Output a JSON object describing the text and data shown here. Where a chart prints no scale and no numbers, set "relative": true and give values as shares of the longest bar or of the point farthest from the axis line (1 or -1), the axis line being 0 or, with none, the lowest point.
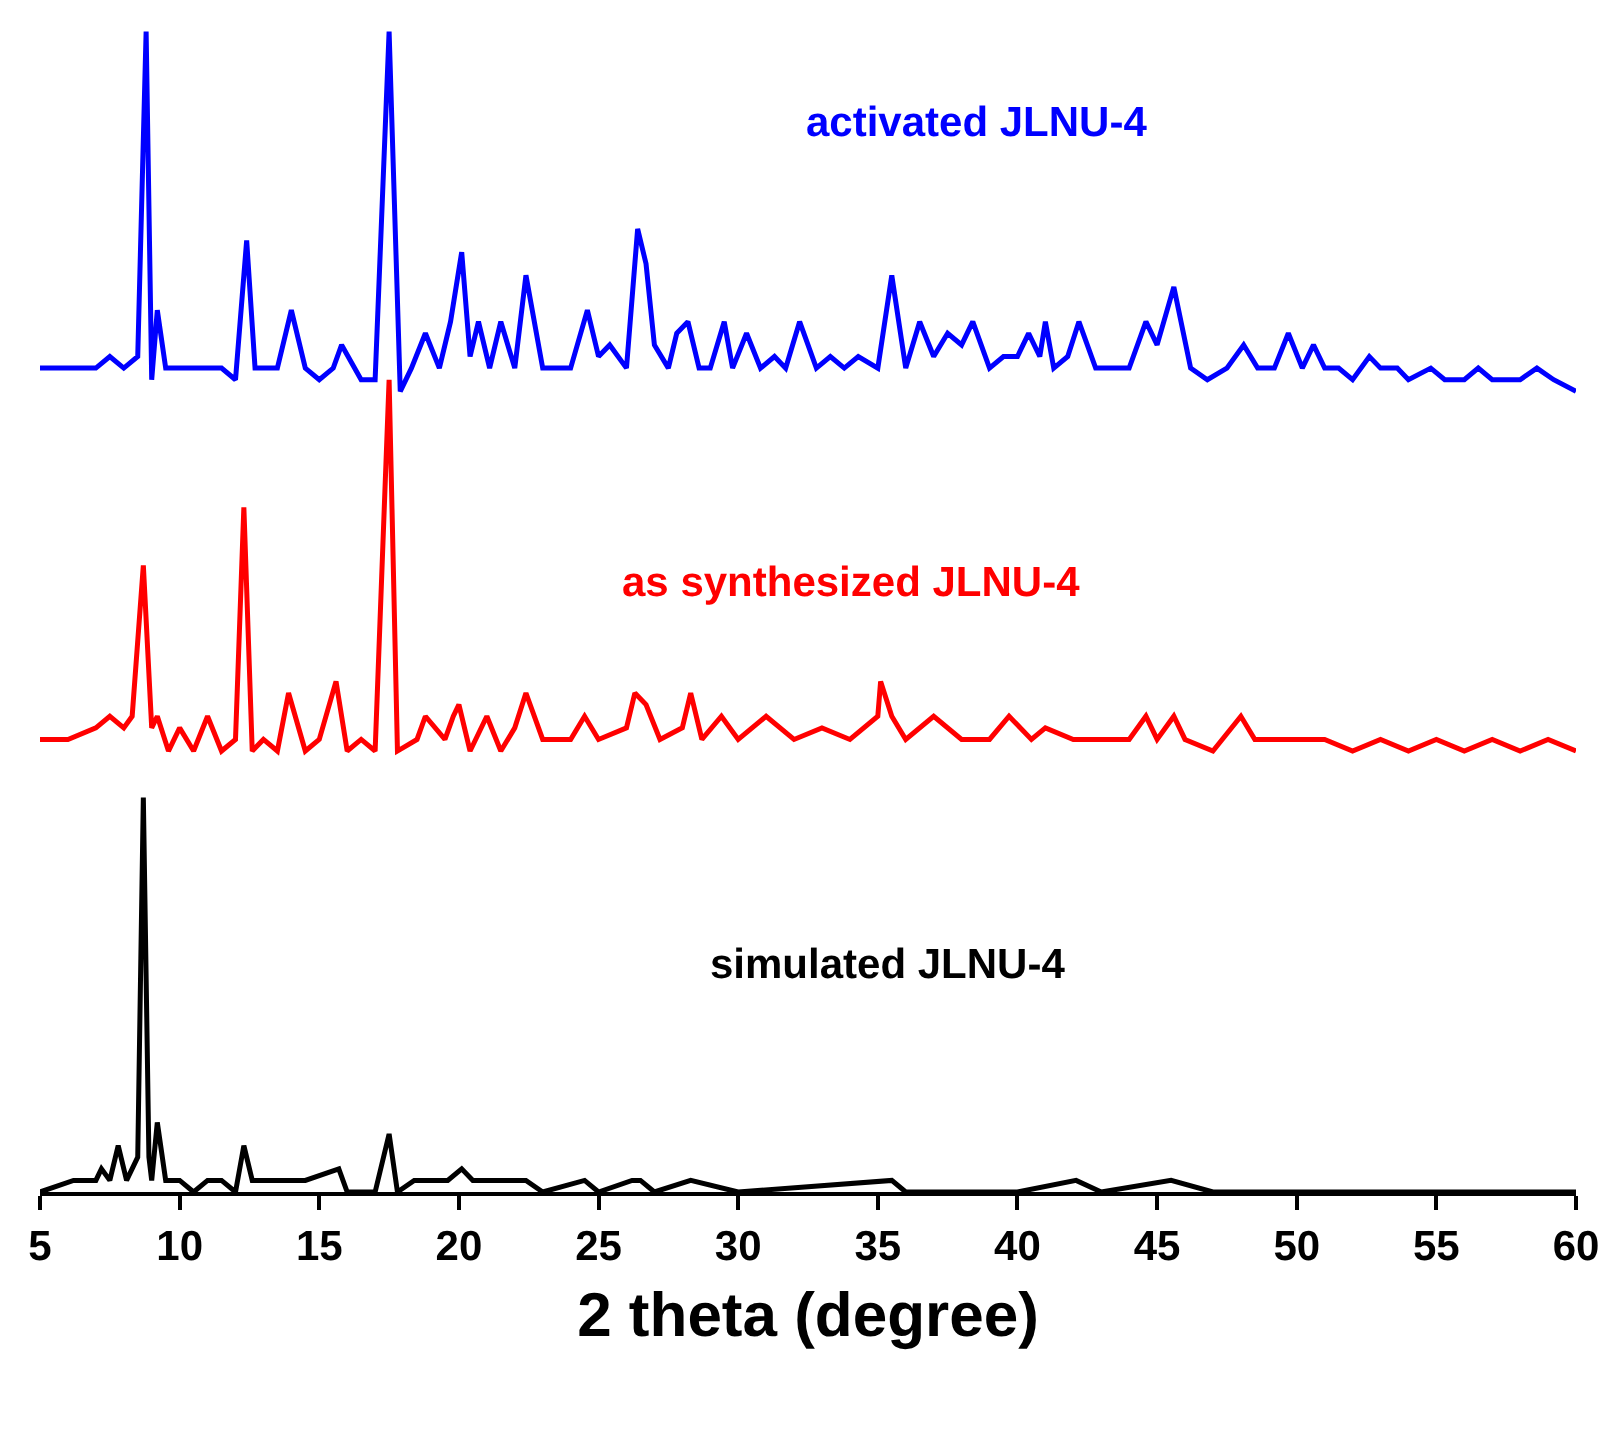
{
  "chart_data": {
    "type": "line",
    "relative": true,
    "xlabel": "2 theta (degree)",
    "xlim": [
      5,
      60
    ],
    "xticks": [
      5,
      10,
      15,
      20,
      25,
      30,
      35,
      40,
      45,
      50,
      55,
      60
    ],
    "grid": false,
    "legend": false,
    "marker": "none",
    "line_style": "solid",
    "tick_labels": "x",
    "series": [
      {
        "name": "activated JLNU-4",
        "color": "#0000ff",
        "x": [
          5,
          6,
          7,
          7.5,
          8,
          8.5,
          8.8,
          9.0,
          9.2,
          9.5,
          10,
          10.5,
          11,
          11.5,
          12,
          12.4,
          12.7,
          13,
          13.5,
          14,
          14.5,
          15,
          15.5,
          15.8,
          16.5,
          17,
          17.5,
          17.9,
          18.3,
          18.8,
          19.3,
          19.7,
          20.1,
          20.4,
          20.7,
          21.1,
          21.5,
          22,
          22.4,
          23,
          23.5,
          24,
          24.6,
          25,
          25.4,
          26,
          26.4,
          26.7,
          27,
          27.5,
          27.8,
          28.2,
          28.6,
          29,
          29.5,
          29.8,
          30.3,
          30.8,
          31.3,
          31.7,
          32.2,
          32.8,
          33.3,
          33.8,
          34.3,
          35,
          35.5,
          36,
          36.5,
          37,
          37.5,
          38,
          38.4,
          39,
          39.5,
          40,
          40.4,
          40.8,
          41,
          41.3,
          41.8,
          42.2,
          42.8,
          43.5,
          44,
          44.6,
          45,
          45.6,
          46.2,
          46.8,
          47.5,
          48.1,
          48.6,
          49.2,
          49.7,
          50.2,
          50.6,
          51,
          51.5,
          52,
          52.6,
          53,
          53.6,
          54,
          54.8,
          55.3,
          56,
          56.5,
          57,
          58,
          58.6,
          59.2,
          60
        ],
        "values": [
          0.71,
          0.71,
          0.71,
          0.72,
          0.71,
          0.72,
          1.0,
          0.7,
          0.76,
          0.71,
          0.71,
          0.71,
          0.71,
          0.71,
          0.7,
          0.82,
          0.71,
          0.71,
          0.71,
          0.76,
          0.71,
          0.7,
          0.71,
          0.73,
          0.7,
          0.7,
          1.0,
          0.69,
          0.71,
          0.74,
          0.71,
          0.75,
          0.81,
          0.72,
          0.75,
          0.71,
          0.75,
          0.71,
          0.79,
          0.71,
          0.71,
          0.71,
          0.76,
          0.72,
          0.73,
          0.71,
          0.83,
          0.8,
          0.73,
          0.71,
          0.74,
          0.75,
          0.71,
          0.71,
          0.75,
          0.71,
          0.74,
          0.71,
          0.72,
          0.71,
          0.75,
          0.71,
          0.72,
          0.71,
          0.72,
          0.71,
          0.79,
          0.71,
          0.75,
          0.72,
          0.74,
          0.73,
          0.75,
          0.71,
          0.72,
          0.72,
          0.74,
          0.72,
          0.75,
          0.71,
          0.72,
          0.75,
          0.71,
          0.71,
          0.71,
          0.75,
          0.73,
          0.78,
          0.71,
          0.7,
          0.71,
          0.73,
          0.71,
          0.71,
          0.74,
          0.71,
          0.73,
          0.71,
          0.71,
          0.7,
          0.72,
          0.71,
          0.71,
          0.7,
          0.71,
          0.7,
          0.7,
          0.71,
          0.7,
          0.7,
          0.71,
          0.7,
          0.69
        ]
      },
      {
        "name": "as synthesized JLNU-4",
        "color": "#ff0000",
        "x": [
          5,
          6,
          7,
          7.5,
          8,
          8.3,
          8.7,
          9.0,
          9.2,
          9.6,
          10,
          10.5,
          11,
          11.5,
          12,
          12.3,
          12.6,
          13,
          13.5,
          13.9,
          14.5,
          15,
          15.6,
          16,
          16.5,
          17,
          17.5,
          17.8,
          18.5,
          18.8,
          19.5,
          19.8,
          20.0,
          20.4,
          21,
          21.5,
          22,
          22.4,
          23,
          24,
          24.5,
          25,
          26,
          26.3,
          26.7,
          27.2,
          28,
          28.3,
          28.7,
          29.4,
          30,
          31,
          32,
          33,
          34,
          35,
          35.1,
          35.5,
          36,
          37,
          38,
          39,
          39.7,
          40.5,
          41,
          42,
          43,
          44,
          44.6,
          45,
          45.6,
          46,
          47,
          48,
          48.5,
          50,
          51,
          52,
          53,
          54,
          55,
          56,
          57,
          58,
          59,
          60
        ],
        "values": [
          0.39,
          0.39,
          0.4,
          0.41,
          0.4,
          0.41,
          0.54,
          0.4,
          0.41,
          0.38,
          0.4,
          0.38,
          0.41,
          0.38,
          0.39,
          0.59,
          0.38,
          0.39,
          0.38,
          0.43,
          0.38,
          0.39,
          0.44,
          0.38,
          0.39,
          0.38,
          0.7,
          0.38,
          0.39,
          0.41,
          0.39,
          0.41,
          0.42,
          0.38,
          0.41,
          0.38,
          0.4,
          0.43,
          0.39,
          0.39,
          0.41,
          0.39,
          0.4,
          0.43,
          0.42,
          0.39,
          0.4,
          0.43,
          0.39,
          0.41,
          0.39,
          0.41,
          0.39,
          0.4,
          0.39,
          0.41,
          0.44,
          0.41,
          0.39,
          0.41,
          0.39,
          0.39,
          0.41,
          0.39,
          0.4,
          0.39,
          0.39,
          0.39,
          0.41,
          0.39,
          0.41,
          0.39,
          0.38,
          0.41,
          0.39,
          0.39,
          0.39,
          0.38,
          0.39,
          0.38,
          0.39,
          0.38,
          0.39,
          0.38,
          0.39,
          0.38
        ]
      },
      {
        "name": "simulated JLNU-4",
        "color": "#000000",
        "x": [
          5,
          6.2,
          7,
          7.2,
          7.5,
          7.8,
          8.1,
          8.5,
          8.7,
          8.9,
          9.0,
          9.2,
          9.5,
          10,
          10.5,
          11,
          11.5,
          12,
          12.3,
          12.6,
          13,
          13.5,
          14,
          14.5,
          15.7,
          16,
          17,
          17.5,
          17.8,
          18.4,
          19,
          19.6,
          20.1,
          20.5,
          21,
          22.4,
          23,
          24.5,
          25,
          26.2,
          26.5,
          27,
          28.3,
          30,
          35.5,
          36,
          40,
          42.1,
          43,
          45.5,
          47,
          50,
          60
        ],
        "values": [
          0,
          0.01,
          0.01,
          0.02,
          0.01,
          0.04,
          0.01,
          0.03,
          0.34,
          0.03,
          0.01,
          0.06,
          0.01,
          0.01,
          0,
          0.01,
          0.01,
          0,
          0.04,
          0.01,
          0.01,
          0.01,
          0.01,
          0.01,
          0.02,
          0,
          0,
          0.05,
          0,
          0.01,
          0.01,
          0.01,
          0.02,
          0.01,
          0.01,
          0.01,
          0,
          0.01,
          0,
          0.01,
          0.01,
          0,
          0.01,
          0,
          0.01,
          0,
          0,
          0.01,
          0,
          0.01,
          0,
          0,
          0
        ]
      }
    ]
  }
}
